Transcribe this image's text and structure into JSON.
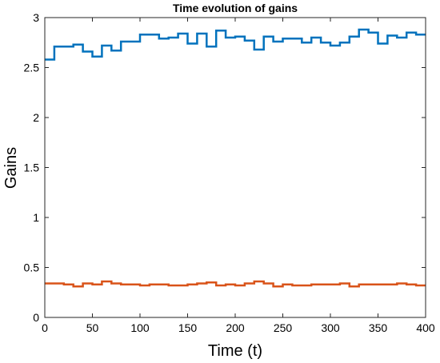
{
  "chart_data": {
    "type": "line",
    "title": "Time evolution of gains",
    "xlabel": "Time (t)",
    "ylabel": "Gains",
    "xlim": [
      0,
      400
    ],
    "ylim": [
      0,
      3
    ],
    "xticks": [
      0,
      50,
      100,
      150,
      200,
      250,
      300,
      350,
      400
    ],
    "yticks": [
      0,
      0.5,
      1,
      1.5,
      2,
      2.5,
      3
    ],
    "xtick_labels": [
      "0",
      "50",
      "100",
      "150",
      "200",
      "250",
      "300",
      "350",
      "400"
    ],
    "ytick_labels": [
      "0",
      "0.5",
      "1",
      "1.5",
      "2",
      "2.5",
      "3"
    ],
    "grid": false,
    "step_width": 10,
    "series": [
      {
        "color": "#0072BD",
        "x": [
          0,
          10,
          20,
          30,
          40,
          50,
          60,
          70,
          80,
          90,
          100,
          110,
          120,
          130,
          140,
          150,
          160,
          170,
          180,
          190,
          200,
          210,
          220,
          230,
          240,
          250,
          260,
          270,
          280,
          290,
          300,
          310,
          320,
          330,
          340,
          350,
          360,
          370,
          380,
          390
        ],
        "values": [
          2.58,
          2.71,
          2.71,
          2.73,
          2.66,
          2.61,
          2.72,
          2.67,
          2.76,
          2.76,
          2.83,
          2.83,
          2.79,
          2.8,
          2.84,
          2.74,
          2.84,
          2.71,
          2.87,
          2.8,
          2.81,
          2.77,
          2.68,
          2.81,
          2.76,
          2.79,
          2.79,
          2.75,
          2.8,
          2.75,
          2.72,
          2.75,
          2.81,
          2.88,
          2.85,
          2.74,
          2.82,
          2.8,
          2.85,
          2.83
        ]
      },
      {
        "color": "#D95319",
        "x": [
          0,
          10,
          20,
          30,
          40,
          50,
          60,
          70,
          80,
          90,
          100,
          110,
          120,
          130,
          140,
          150,
          160,
          170,
          180,
          190,
          200,
          210,
          220,
          230,
          240,
          250,
          260,
          270,
          280,
          290,
          300,
          310,
          320,
          330,
          340,
          350,
          360,
          370,
          380,
          390
        ],
        "values": [
          0.34,
          0.34,
          0.33,
          0.31,
          0.34,
          0.33,
          0.36,
          0.34,
          0.33,
          0.33,
          0.32,
          0.33,
          0.33,
          0.32,
          0.32,
          0.33,
          0.34,
          0.35,
          0.32,
          0.33,
          0.32,
          0.34,
          0.36,
          0.34,
          0.31,
          0.33,
          0.32,
          0.32,
          0.33,
          0.33,
          0.33,
          0.34,
          0.31,
          0.33,
          0.33,
          0.33,
          0.33,
          0.34,
          0.33,
          0.32
        ]
      }
    ]
  }
}
